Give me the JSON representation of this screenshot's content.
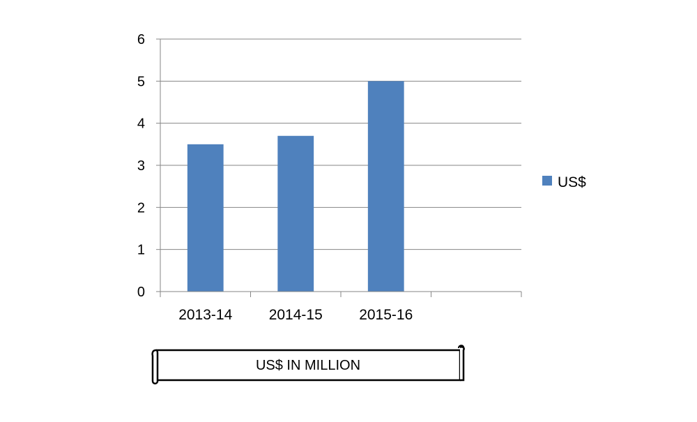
{
  "chart_data": {
    "type": "bar",
    "categories": [
      "2013-14",
      "2014-15",
      "2015-16",
      ""
    ],
    "series": [
      {
        "name": "US$",
        "values": [
          3.5,
          3.7,
          5,
          null
        ]
      }
    ],
    "ylim": [
      0,
      6
    ],
    "yticks": [
      0,
      1,
      2,
      3,
      4,
      5,
      6
    ],
    "grid": true,
    "legend_position": "right",
    "annotation": "US$ IN MILLION"
  },
  "colors": {
    "bar": "#4f81bd",
    "grid": "#868686",
    "axis": "#868686"
  }
}
